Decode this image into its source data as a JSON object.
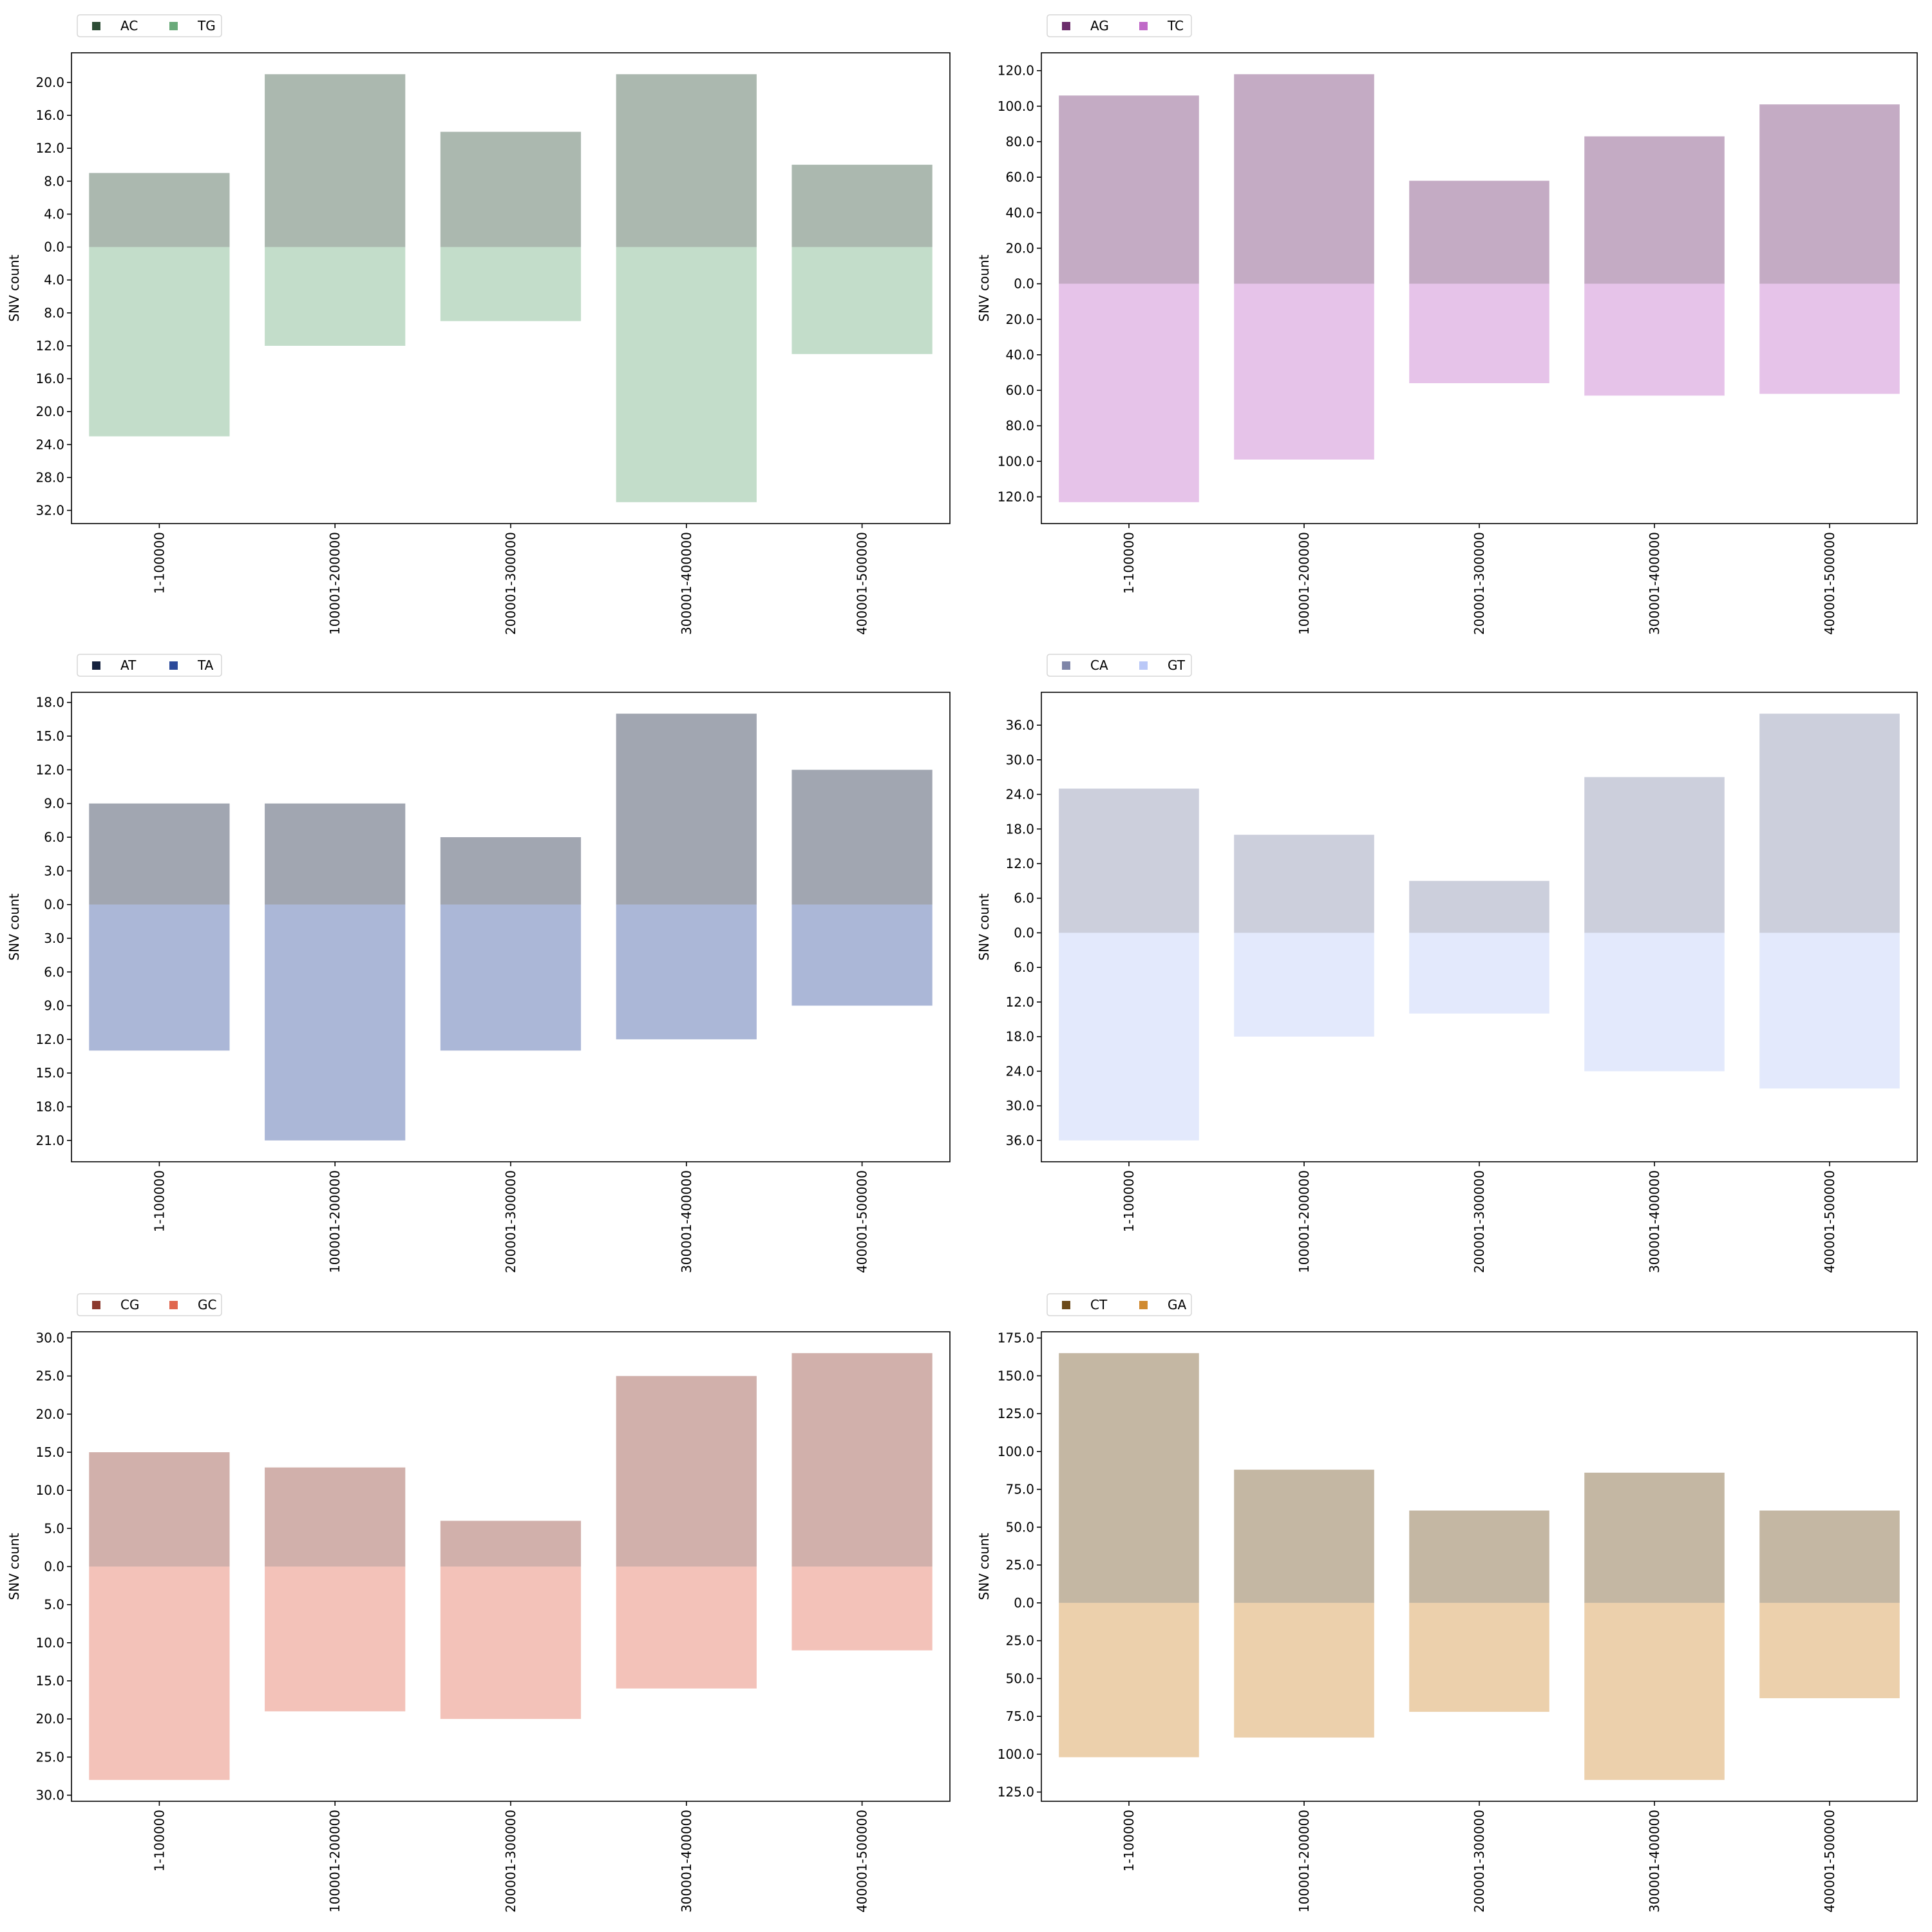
{
  "chart_data": [
    {
      "type": "bar",
      "title": "",
      "ylabel": "SNV count",
      "xlabel": "",
      "categories": [
        "1-100000",
        "100001-200000",
        "200001-300000",
        "300001-400000",
        "400001-500000"
      ],
      "series": [
        {
          "name": "AC",
          "direction": "up",
          "color": "#2e4d36",
          "values": [
            9,
            21,
            14,
            21,
            10
          ]
        },
        {
          "name": "TG",
          "direction": "down",
          "color": "#6aaa7a",
          "values": [
            23,
            12,
            9,
            31,
            13
          ]
        }
      ],
      "yticks": [
        -32,
        -28,
        -24,
        -20,
        -16,
        -12,
        -8,
        -4,
        0,
        4,
        8,
        12,
        16,
        20
      ],
      "ytick_labels": [
        "32.0",
        "28.0",
        "24.0",
        "20.0",
        "16.0",
        "12.0",
        "8.0",
        "4.0",
        "0.0",
        "4.0",
        "8.0",
        "12.0",
        "16.0",
        "20.0"
      ],
      "legend": "top-left",
      "grid": false
    },
    {
      "type": "bar",
      "title": "",
      "ylabel": "SNV count",
      "xlabel": "",
      "categories": [
        "1-100000",
        "100001-200000",
        "200001-300000",
        "300001-400000",
        "400001-500000"
      ],
      "series": [
        {
          "name": "AG",
          "direction": "up",
          "color": "#6b2d6b",
          "values": [
            106,
            118,
            58,
            83,
            101
          ]
        },
        {
          "name": "TC",
          "direction": "down",
          "color": "#c06ac8",
          "values": [
            123,
            99,
            56,
            63,
            62
          ]
        }
      ],
      "yticks": [
        -120,
        -100,
        -80,
        -60,
        -40,
        -20,
        0,
        20,
        40,
        60,
        80,
        100,
        120
      ],
      "ytick_labels": [
        "120.0",
        "100.0",
        "80.0",
        "60.0",
        "40.0",
        "20.0",
        "0.0",
        "20.0",
        "40.0",
        "60.0",
        "80.0",
        "100.0",
        "120.0"
      ],
      "legend": "top-left",
      "grid": false
    },
    {
      "type": "bar",
      "title": "",
      "ylabel": "SNV count",
      "xlabel": "",
      "categories": [
        "1-100000",
        "100001-200000",
        "200001-300000",
        "300001-400000",
        "400001-500000"
      ],
      "series": [
        {
          "name": "AT",
          "direction": "up",
          "color": "#14213d",
          "values": [
            9,
            9,
            6,
            17,
            12
          ]
        },
        {
          "name": "TA",
          "direction": "down",
          "color": "#2c4a9a",
          "values": [
            13,
            21,
            13,
            12,
            9
          ]
        }
      ],
      "yticks": [
        -21,
        -18,
        -15,
        -12,
        -9,
        -6,
        -3,
        0,
        3,
        6,
        9,
        12,
        15,
        18
      ],
      "ytick_labels": [
        "21.0",
        "18.0",
        "15.0",
        "12.0",
        "9.0",
        "6.0",
        "3.0",
        "0.0",
        "3.0",
        "6.0",
        "9.0",
        "12.0",
        "15.0",
        "18.0"
      ],
      "legend": "top-left",
      "grid": false
    },
    {
      "type": "bar",
      "title": "",
      "ylabel": "SNV count",
      "xlabel": "",
      "categories": [
        "1-100000",
        "100001-200000",
        "200001-300000",
        "300001-400000",
        "400001-500000"
      ],
      "series": [
        {
          "name": "CA",
          "direction": "up",
          "color": "#7f86a8",
          "values": [
            25,
            17,
            9,
            27,
            38
          ]
        },
        {
          "name": "GT",
          "direction": "down",
          "color": "#bac8f7",
          "values": [
            36,
            18,
            14,
            24,
            27
          ]
        }
      ],
      "yticks": [
        -36,
        -30,
        -24,
        -18,
        -12,
        -6,
        0,
        6,
        12,
        18,
        24,
        30,
        36
      ],
      "ytick_labels": [
        "36.0",
        "30.0",
        "24.0",
        "18.0",
        "12.0",
        "6.0",
        "0.0",
        "6.0",
        "12.0",
        "18.0",
        "24.0",
        "30.0",
        "36.0"
      ],
      "legend": "top-left",
      "grid": false
    },
    {
      "type": "bar",
      "title": "",
      "ylabel": "SNV count",
      "xlabel": "",
      "categories": [
        "1-100000",
        "100001-200000",
        "200001-300000",
        "300001-400000",
        "400001-500000"
      ],
      "series": [
        {
          "name": "CG",
          "direction": "up",
          "color": "#8b3a2e",
          "values": [
            15,
            13,
            6,
            25,
            28
          ]
        },
        {
          "name": "GC",
          "direction": "down",
          "color": "#e0674f",
          "values": [
            28,
            19,
            20,
            16,
            11
          ]
        }
      ],
      "yticks": [
        -30,
        -25,
        -20,
        -15,
        -10,
        -5,
        0,
        5,
        10,
        15,
        20,
        25,
        30
      ],
      "ytick_labels": [
        "30.0",
        "25.0",
        "20.0",
        "15.0",
        "10.0",
        "5.0",
        "0.0",
        "5.0",
        "10.0",
        "15.0",
        "20.0",
        "25.0",
        "30.0"
      ],
      "legend": "top-left",
      "grid": false
    },
    {
      "type": "bar",
      "title": "",
      "ylabel": "SNV count",
      "xlabel": "",
      "categories": [
        "1-100000",
        "100001-200000",
        "200001-300000",
        "300001-400000",
        "400001-500000"
      ],
      "series": [
        {
          "name": "CT",
          "direction": "up",
          "color": "#6b4a1a",
          "values": [
            165,
            88,
            61,
            86,
            61
          ]
        },
        {
          "name": "GA",
          "direction": "down",
          "color": "#d08a30",
          "values": [
            102,
            89,
            72,
            117,
            63
          ]
        }
      ],
      "yticks": [
        -125,
        -100,
        -75,
        -50,
        -25,
        0,
        25,
        50,
        75,
        100,
        125,
        150,
        175
      ],
      "ytick_labels": [
        "125.0",
        "100.0",
        "75.0",
        "50.0",
        "25.0",
        "0.0",
        "25.0",
        "50.0",
        "75.0",
        "100.0",
        "125.0",
        "150.0",
        "175.0"
      ],
      "legend": "top-left",
      "grid": false
    }
  ]
}
